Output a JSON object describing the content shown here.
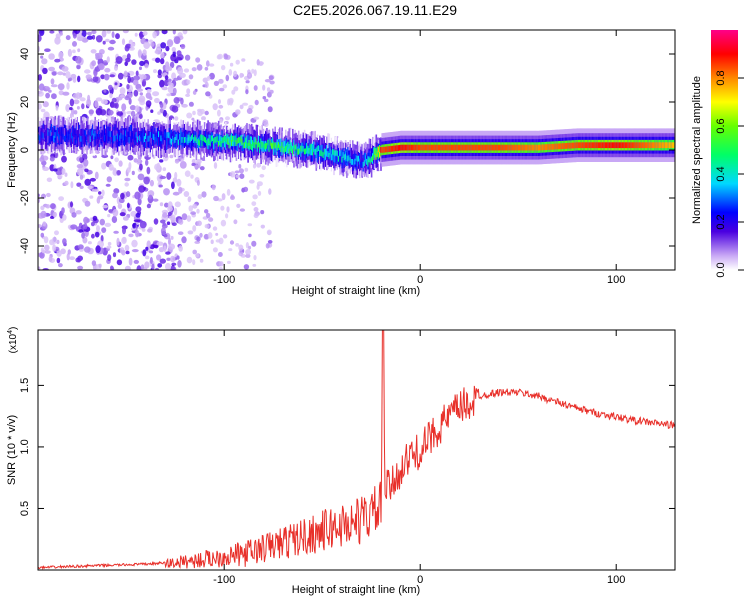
{
  "figure": {
    "title": "C2E5.2026.067.19.11.E29"
  },
  "chart_data": [
    {
      "type": "heatmap",
      "xlabel": "Height of straight line (km)",
      "ylabel": "Frequency (Hz)",
      "xlim": [
        -195,
        130
      ],
      "ylim": [
        -50,
        50
      ],
      "xticks": [
        -100,
        0,
        100
      ],
      "yticks": [
        -40,
        -20,
        0,
        20,
        40
      ],
      "colorbar": {
        "label": "Normalized spectral amplitude",
        "range": [
          0,
          1
        ],
        "ticks": [
          0.0,
          0.2,
          0.4,
          0.6,
          0.8
        ]
      },
      "ridge": {
        "x": [
          -195,
          -160,
          -130,
          -110,
          -90,
          -70,
          -55,
          -45,
          -35,
          -30,
          -25,
          -20,
          -10,
          0,
          20,
          40,
          60,
          80,
          100,
          130
        ],
        "freq": [
          6,
          6,
          5,
          4,
          3,
          1,
          0,
          -2,
          -4,
          -5,
          -3,
          0,
          1,
          1,
          1,
          1,
          1,
          2,
          2,
          2
        ],
        "amplitude": [
          0.25,
          0.25,
          0.3,
          0.45,
          0.5,
          0.5,
          0.45,
          0.4,
          0.35,
          0.3,
          0.45,
          0.85,
          0.9,
          0.85,
          0.85,
          0.85,
          0.8,
          0.85,
          0.9,
          0.75
        ]
      }
    },
    {
      "type": "line",
      "xlabel": "Height of straight line (km)",
      "ylabel": "SNR (10 * v/v)",
      "y_multiplier": "(x10",
      "y_multiplier_exp": "4",
      "y_multiplier_close": ")",
      "xlim": [
        -195,
        130
      ],
      "ylim": [
        0,
        1.95
      ],
      "xticks": [
        -100,
        0,
        100
      ],
      "yticks": [
        0.5,
        1.0,
        1.5
      ],
      "ytick_labels": [
        "0.5",
        "1.0",
        "1.5"
      ],
      "series": [
        {
          "name": "SNR",
          "color": "#e8302a",
          "x": [
            -195,
            -180,
            -160,
            -140,
            -130,
            -120,
            -110,
            -100,
            -90,
            -80,
            -70,
            -60,
            -50,
            -40,
            -30,
            -25,
            -20,
            -19,
            -18,
            -15,
            -10,
            -5,
            0,
            10,
            20,
            30,
            40,
            50,
            60,
            70,
            80,
            90,
            100,
            110,
            120,
            130
          ],
          "y": [
            0.02,
            0.03,
            0.04,
            0.05,
            0.06,
            0.08,
            0.1,
            0.13,
            0.15,
            0.2,
            0.25,
            0.3,
            0.35,
            0.4,
            0.45,
            0.5,
            0.55,
            1.95,
            0.7,
            0.7,
            0.85,
            0.95,
            1.0,
            1.2,
            1.35,
            1.42,
            1.45,
            1.45,
            1.42,
            1.37,
            1.32,
            1.28,
            1.25,
            1.22,
            1.2,
            1.18
          ]
        }
      ]
    }
  ],
  "colors": {
    "line": "#e8302a",
    "axis": "#000000"
  }
}
